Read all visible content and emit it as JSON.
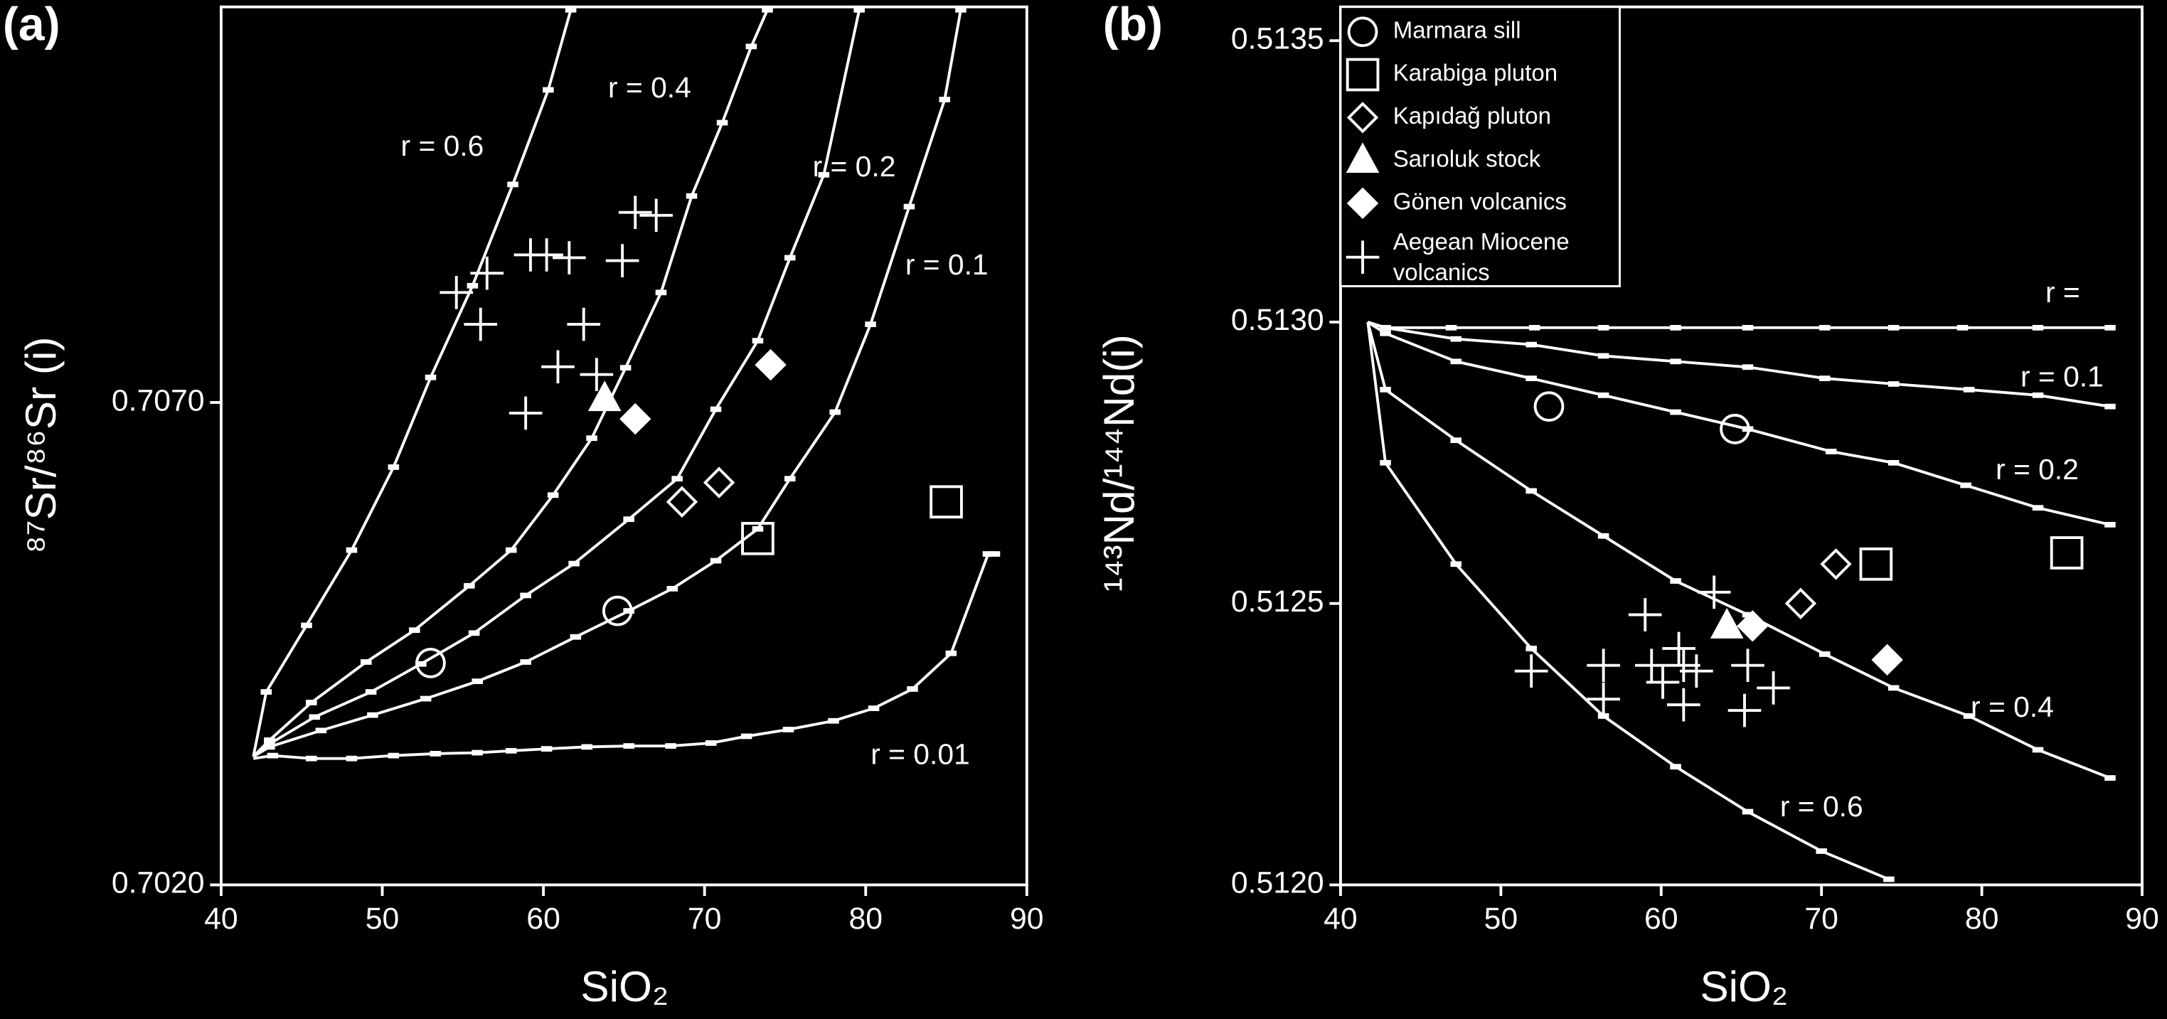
{
  "chart_data": [
    {
      "type": "scatter",
      "panel_label": "(a)",
      "x_label": "SiO₂",
      "y_label": "⁸⁷Sr/⁸⁶Sr (i)",
      "xlim": [
        40,
        90
      ],
      "xticks": [
        40,
        50,
        60,
        70,
        80,
        90
      ],
      "ylim": [
        0.702,
        0.7111
      ],
      "yticks": [
        {
          "value": 0.702,
          "label": "0.7020"
        },
        {
          "value": 0.707,
          "label": "0.7070"
        }
      ],
      "legend": false,
      "series": [
        {
          "name": "r = 0.6",
          "color": "#ffffff",
          "line": true,
          "marker": "dash",
          "x": [
            42.0,
            42.8,
            45.3,
            48.1,
            50.7,
            53.0,
            55.6,
            58.1,
            60.3,
            61.7
          ],
          "values": [
            0.70333,
            0.704,
            0.70469,
            0.70547,
            0.70633,
            0.70726,
            0.70821,
            0.70926,
            0.71024,
            0.71107
          ]
        },
        {
          "name": "r = 0.4",
          "color": "#ffffff",
          "line": true,
          "marker": "dash",
          "x": [
            42.0,
            43.0,
            45.6,
            49.0,
            52.0,
            55.4,
            58.0,
            60.6,
            63.0,
            65.1,
            67.3,
            69.2,
            71.1,
            72.9,
            73.9
          ],
          "values": [
            0.70333,
            0.7035,
            0.70389,
            0.70431,
            0.70464,
            0.7051,
            0.70547,
            0.70604,
            0.70663,
            0.70736,
            0.70814,
            0.70914,
            0.7099,
            0.71069,
            0.71107
          ]
        },
        {
          "name": "r = 0.2",
          "color": "#ffffff",
          "line": true,
          "marker": "dash",
          "x": [
            42.0,
            43.0,
            45.8,
            49.3,
            52.4,
            55.7,
            58.9,
            61.9,
            65.3,
            68.3,
            70.7,
            73.3,
            75.3,
            77.4,
            79.6
          ],
          "values": [
            0.70333,
            0.70346,
            0.70374,
            0.704,
            0.70429,
            0.70461,
            0.705,
            0.70533,
            0.70579,
            0.70621,
            0.70693,
            0.70764,
            0.7085,
            0.70936,
            0.71107
          ]
        },
        {
          "name": "r = 0.1",
          "color": "#ffffff",
          "line": true,
          "marker": "dash",
          "x": [
            42.0,
            43.0,
            46.2,
            49.4,
            52.7,
            55.9,
            58.9,
            62.0,
            65.3,
            68.0,
            70.7,
            73.3,
            75.3,
            78.1,
            80.3,
            82.7,
            84.9,
            85.9
          ],
          "values": [
            0.70333,
            0.70343,
            0.7036,
            0.70376,
            0.70393,
            0.70411,
            0.70431,
            0.70457,
            0.70484,
            0.70507,
            0.70536,
            0.70569,
            0.70621,
            0.7069,
            0.70781,
            0.70903,
            0.71014,
            0.71107
          ]
        },
        {
          "name": "r = 0.01",
          "color": "#ffffff",
          "line": true,
          "marker": "dash",
          "x": [
            42.0,
            43.2,
            45.6,
            48.1,
            50.7,
            53.3,
            55.9,
            58.0,
            60.2,
            62.7,
            65.3,
            67.9,
            70.4,
            72.6,
            75.2,
            78.0,
            80.5,
            82.9,
            85.3,
            87.6,
            88.0
          ],
          "values": [
            0.70331,
            0.70334,
            0.70331,
            0.70331,
            0.70334,
            0.70336,
            0.70337,
            0.70339,
            0.70341,
            0.70343,
            0.70344,
            0.70344,
            0.70347,
            0.70354,
            0.70361,
            0.7037,
            0.70383,
            0.70403,
            0.7044,
            0.70543,
            0.70543
          ]
        },
        {
          "color": "#ffffff",
          "marker": "circle",
          "x": [
            53.0,
            64.6
          ],
          "values": [
            0.7043,
            0.70484
          ]
        },
        {
          "color": "#ffffff",
          "marker": "square",
          "x": [
            73.3,
            85.0
          ],
          "values": [
            0.70559,
            0.70597
          ]
        },
        {
          "color": "#ffffff",
          "marker": "diamond",
          "x": [
            68.6,
            70.9
          ],
          "values": [
            0.70597,
            0.70617
          ]
        },
        {
          "color": "#ffffff",
          "marker": "triangle",
          "x": [
            63.8
          ],
          "values": [
            0.70704
          ]
        },
        {
          "color": "#ffffff",
          "marker": "diamond-filled",
          "x": [
            65.7,
            74.1
          ],
          "values": [
            0.70683,
            0.70739
          ]
        },
        {
          "color": "#ffffff",
          "marker": "plus",
          "x": [
            54.6,
            56.5,
            56.1,
            59.2,
            60.2,
            61.6,
            64.9,
            65.7,
            67.0,
            62.5,
            60.9,
            63.3,
            58.9
          ],
          "values": [
            0.70814,
            0.70834,
            0.70781,
            0.70853,
            0.70853,
            0.7085,
            0.70847,
            0.70897,
            0.70894,
            0.70781,
            0.70737,
            0.70729,
            0.70689
          ]
        }
      ]
    },
    {
      "type": "scatter",
      "panel_label": "(b)",
      "x_label": "SiO₂",
      "y_label": "¹⁴³Nd/¹⁴⁴Nd(i)",
      "xlim": [
        40,
        90
      ],
      "xticks": [
        40,
        50,
        60,
        70,
        80,
        90
      ],
      "ylim": [
        0.512,
        0.51356
      ],
      "yticks": [
        {
          "value": 0.512,
          "label": "0.5120"
        },
        0.5125,
        {
          "value": 0.513,
          "label": "0.5130"
        },
        0.5135
      ],
      "legend": true,
      "legend_loc": "upper left",
      "series": [
        {
          "name": "r =",
          "color": "#ffffff",
          "line": true,
          "marker": "dash",
          "x": [
            41.7,
            42.8,
            46.9,
            52.1,
            56.4,
            60.9,
            65.4,
            70.2,
            74.5,
            78.8,
            83.5,
            88.0
          ],
          "values": [
            0.513,
            0.51299,
            0.51299,
            0.51299,
            0.51299,
            0.51299,
            0.51299,
            0.51299,
            0.51299,
            0.51299,
            0.51299,
            0.51299
          ]
        },
        {
          "name": "r = 0.1",
          "color": "#ffffff",
          "line": true,
          "marker": "dash",
          "x": [
            41.7,
            42.8,
            47.2,
            51.9,
            56.4,
            60.9,
            65.4,
            70.2,
            74.5,
            79.2,
            83.5,
            88.0
          ],
          "values": [
            0.513,
            0.51299,
            0.51297,
            0.51296,
            0.51294,
            0.51293,
            0.51292,
            0.5129,
            0.51289,
            0.51288,
            0.51287,
            0.51285
          ]
        },
        {
          "name": "r = 0.2",
          "color": "#ffffff",
          "line": true,
          "marker": "dash",
          "x": [
            41.7,
            42.8,
            47.2,
            51.9,
            56.4,
            60.9,
            65.4,
            70.6,
            74.5,
            79.0,
            83.5,
            88.0
          ],
          "values": [
            0.513,
            0.51298,
            0.51293,
            0.5129,
            0.51287,
            0.51284,
            0.51281,
            0.51277,
            0.51275,
            0.51271,
            0.51267,
            0.51264
          ]
        },
        {
          "name": "r = 0.4",
          "color": "#ffffff",
          "line": true,
          "marker": "dash",
          "x": [
            41.7,
            42.8,
            47.2,
            51.9,
            56.4,
            60.9,
            65.4,
            70.2,
            74.5,
            79.2,
            83.5,
            88.0
          ],
          "values": [
            0.513,
            0.51288,
            0.51279,
            0.5127,
            0.51262,
            0.51254,
            0.51248,
            0.51241,
            0.51235,
            0.5123,
            0.51224,
            0.51219
          ]
        },
        {
          "name": "r = 0.6",
          "color": "#ffffff",
          "line": true,
          "marker": "dash",
          "x": [
            41.7,
            42.8,
            47.2,
            51.9,
            56.4,
            60.9,
            65.4,
            70.0,
            74.2
          ],
          "values": [
            0.513,
            0.51275,
            0.51257,
            0.51242,
            0.5123,
            0.51221,
            0.51213,
            0.51206,
            0.51201
          ]
        },
        {
          "name": "Marmara sill",
          "color": "#ffffff",
          "marker": "circle",
          "x": [
            53.0,
            64.6
          ],
          "values": [
            0.51285,
            0.51281
          ]
        },
        {
          "name": "Karabiga pluton",
          "color": "#ffffff",
          "marker": "square",
          "x": [
            73.4,
            85.3
          ],
          "values": [
            0.51257,
            0.51259
          ]
        },
        {
          "name": "Kapıdağ pluton",
          "color": "#ffffff",
          "marker": "diamond",
          "x": [
            68.7,
            70.9
          ],
          "values": [
            0.5125,
            0.51257
          ]
        },
        {
          "name": "Sarıoluk stock",
          "color": "#ffffff",
          "marker": "triangle",
          "x": [
            64.1
          ],
          "values": [
            0.51246
          ]
        },
        {
          "name": "Gönen volcanics",
          "color": "#ffffff",
          "marker": "diamond-filled",
          "x": [
            65.7,
            74.1
          ],
          "values": [
            0.51246,
            0.5124
          ]
        },
        {
          "name": "Aegean Miocene volcanics",
          "color": "#ffffff",
          "marker": "plus",
          "x": [
            51.9,
            56.4,
            56.4,
            59.0,
            59.4,
            60.1,
            61.1,
            61.4,
            61.4,
            63.3,
            62.2,
            65.4,
            65.2,
            67.0
          ],
          "values": [
            0.51238,
            0.51239,
            0.51233,
            0.51248,
            0.51239,
            0.51236,
            0.51242,
            0.51239,
            0.51232,
            0.51252,
            0.51238,
            0.51239,
            0.51231,
            0.51235
          ]
        }
      ]
    }
  ]
}
